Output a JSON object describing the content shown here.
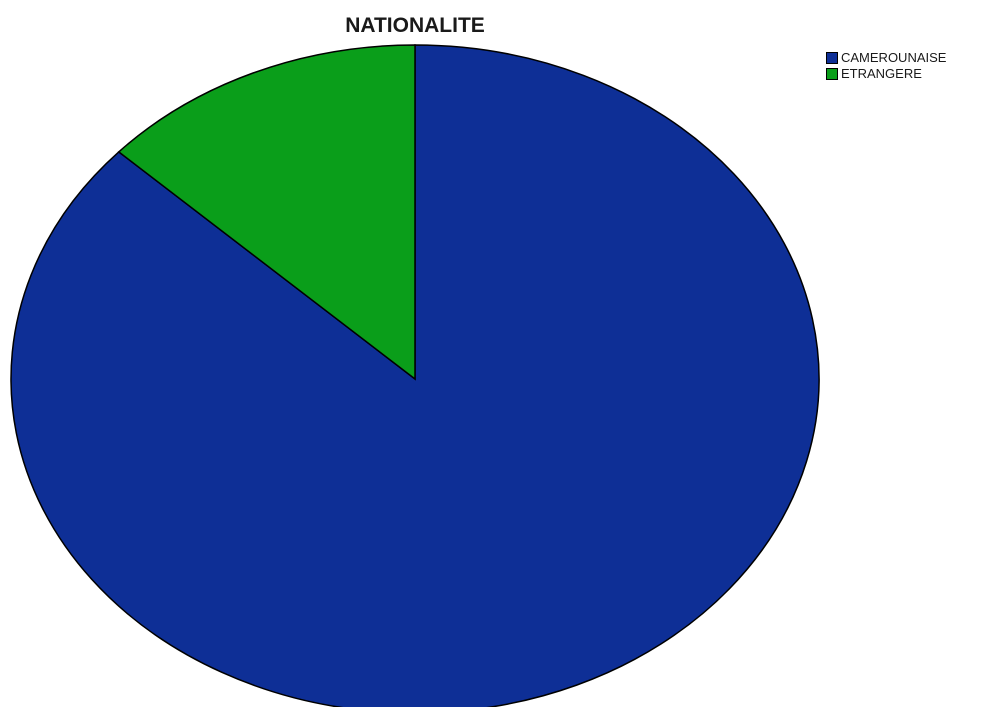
{
  "chart_data": {
    "type": "pie",
    "title": "NATIONALITE",
    "categories": [
      "CAMEROUNAISE",
      "ETRANGERE"
    ],
    "values": [
      86.9,
      13.1
    ],
    "colors": [
      "#0e2f96",
      "#0a9e1a"
    ],
    "start": "12 o'clock",
    "direction": "clockwise",
    "legend_position": "top-right",
    "slice_labels": "none"
  }
}
